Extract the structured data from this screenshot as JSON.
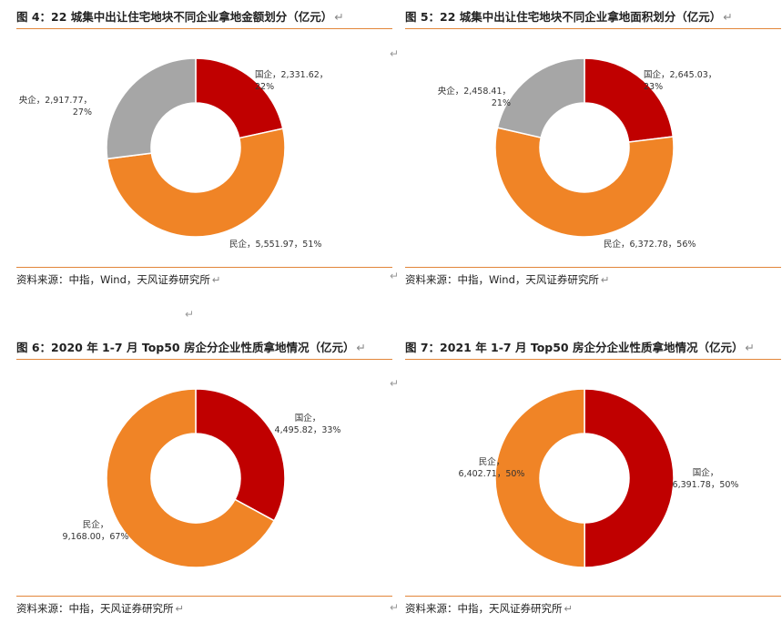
{
  "return_mark": "↵",
  "chart_data": [
    {
      "type": "pie",
      "title": "图 4：22 城集中出让住宅地块不同企业拿地金额划分（亿元）",
      "source": "资料来源：中指，Wind，天风证券研究所",
      "hole": 0.5,
      "slices": [
        {
          "name": "国企",
          "value": 2331.62,
          "value_label": "2,331.62",
          "pct": "22%",
          "color": "#c00000",
          "label_lines": [
            "国企，2,331.62，",
            "22%"
          ]
        },
        {
          "name": "民企",
          "value": 5551.97,
          "value_label": "5,551.97",
          "pct": "51%",
          "color": "#f08426",
          "label_lines": [
            "民企，5,551.97，51%"
          ]
        },
        {
          "name": "央企",
          "value": 2917.77,
          "value_label": "2,917.77",
          "pct": "27%",
          "color": "#a6a6a6",
          "label_lines": [
            "央企，2,917.77，",
            "27%"
          ]
        }
      ]
    },
    {
      "type": "pie",
      "title": "图 5：22 城集中出让住宅地块不同企业拿地面积划分（亿元）",
      "source": "资料来源：中指，Wind，天风证券研究所",
      "hole": 0.5,
      "slices": [
        {
          "name": "国企",
          "value": 2645.03,
          "value_label": "2,645.03",
          "pct": "23%",
          "color": "#c00000",
          "label_lines": [
            "国企，2,645.03，",
            "23%"
          ]
        },
        {
          "name": "民企",
          "value": 6372.78,
          "value_label": "6,372.78",
          "pct": "56%",
          "color": "#f08426",
          "label_lines": [
            "民企，6,372.78，56%"
          ]
        },
        {
          "name": "央企",
          "value": 2458.41,
          "value_label": "2,458.41",
          "pct": "21%",
          "color": "#a6a6a6",
          "label_lines": [
            "央企，2,458.41，",
            "21%"
          ]
        }
      ]
    },
    {
      "type": "pie",
      "title": "图 6：2020 年 1-7 月 Top50 房企分企业性质拿地情况（亿元）",
      "source": "资料来源：中指，天风证券研究所",
      "hole": 0.5,
      "slices": [
        {
          "name": "国企",
          "value": 4495.82,
          "value_label": "4,495.82",
          "pct": "33%",
          "color": "#c00000",
          "label_lines": [
            "国企，",
            "4,495.82，33%"
          ]
        },
        {
          "name": "民企",
          "value": 9168.0,
          "value_label": "9,168.00",
          "pct": "67%",
          "color": "#f08426",
          "label_lines": [
            "民企，",
            "9,168.00，67%"
          ]
        }
      ]
    },
    {
      "type": "pie",
      "title": "图 7：2021 年 1-7 月 Top50 房企分企业性质拿地情况（亿元）",
      "source": "资料来源：中指，天风证券研究所",
      "hole": 0.5,
      "slices": [
        {
          "name": "国企",
          "value": 6391.78,
          "value_label": "6,391.78",
          "pct": "50%",
          "color": "#c00000",
          "label_lines": [
            "国企，",
            "6,391.78，50%"
          ]
        },
        {
          "name": "民企",
          "value": 6402.71,
          "value_label": "6,402.71",
          "pct": "50%",
          "color": "#f08426",
          "label_lines": [
            "民企，",
            "6,402.71，50%"
          ]
        }
      ]
    }
  ]
}
